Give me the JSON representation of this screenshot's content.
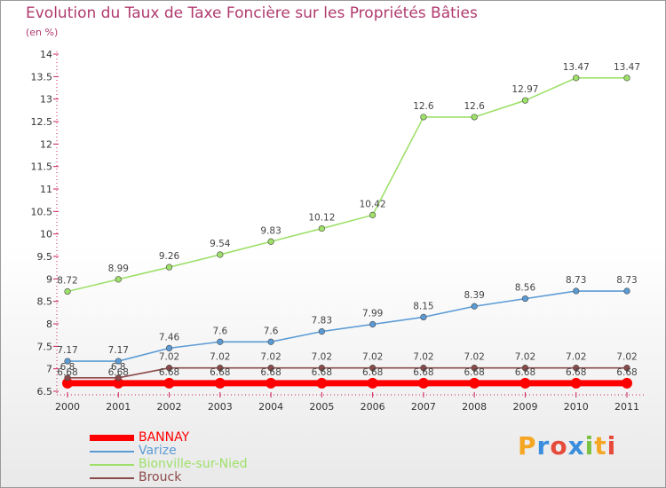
{
  "chart_data": {
    "type": "line",
    "title": "Evolution du Taux de Taxe Foncière sur les Propriétés Bâties",
    "ylabel": "(en %)",
    "xlabel": "",
    "ylim": [
      6.5,
      14
    ],
    "yticks": [
      "6.5",
      "7",
      "7.5",
      "8",
      "8.5",
      "9",
      "9.5",
      "10",
      "10.5",
      "11",
      "11.5",
      "12",
      "12.5",
      "13",
      "13.5",
      "14"
    ],
    "categories": [
      "2000",
      "2001",
      "2002",
      "2003",
      "2004",
      "2005",
      "2006",
      "2007",
      "2008",
      "2009",
      "2010",
      "2011"
    ],
    "series": [
      {
        "name": "BANNAY",
        "color": "#ff0000",
        "values": [
          6.68,
          6.68,
          6.68,
          6.68,
          6.68,
          6.68,
          6.68,
          6.68,
          6.68,
          6.68,
          6.68,
          6.68
        ],
        "labels": [
          "6.68",
          "6.68",
          "6.68",
          "6.68",
          "6.68",
          "6.68",
          "6.68",
          "6.68",
          "6.68",
          "6.68",
          "6.68",
          "6.68"
        ]
      },
      {
        "name": "Varize",
        "color": "#5b9bd5",
        "values": [
          7.17,
          7.17,
          7.46,
          7.6,
          7.6,
          7.83,
          7.99,
          8.15,
          8.39,
          8.56,
          8.73,
          8.73
        ],
        "labels": [
          "7.17",
          "7.17",
          "7.46",
          "7.6",
          "7.6",
          "7.83",
          "7.99",
          "8.15",
          "8.39",
          "8.56",
          "8.73",
          "8.73"
        ]
      },
      {
        "name": "Bionville-sur-Nied",
        "color": "#9ee06a",
        "values": [
          8.72,
          8.99,
          9.26,
          9.54,
          9.83,
          10.12,
          10.42,
          12.6,
          12.6,
          12.97,
          13.47,
          13.47
        ],
        "labels": [
          "8.72",
          "8.99",
          "9.26",
          "9.54",
          "9.83",
          "10.12",
          "10.42",
          "12.6",
          "12.6",
          "12.97",
          "13.47",
          "13.47"
        ]
      },
      {
        "name": "Brouck",
        "color": "#8b4a4a",
        "values": [
          6.8,
          6.8,
          7.02,
          7.02,
          7.02,
          7.02,
          7.02,
          7.02,
          7.02,
          7.02,
          7.02,
          7.02
        ],
        "labels": [
          "6.8",
          "6.8",
          "7.02",
          "7.02",
          "7.02",
          "7.02",
          "7.02",
          "7.02",
          "7.02",
          "7.02",
          "7.02",
          "7.02"
        ]
      }
    ],
    "legend": [
      "BANNAY",
      "Varize",
      "Bionville-sur-Nied",
      "Brouck"
    ],
    "legend_position": "bottom-left"
  },
  "brand": {
    "letters": [
      "P",
      "r",
      "o",
      "x",
      "i",
      "t",
      "i"
    ],
    "colors": [
      "#f5a623",
      "#3b8ede",
      "#e64a3b",
      "#3b8ede",
      "#7cc242",
      "#f5a623",
      "#e64a3b"
    ]
  }
}
